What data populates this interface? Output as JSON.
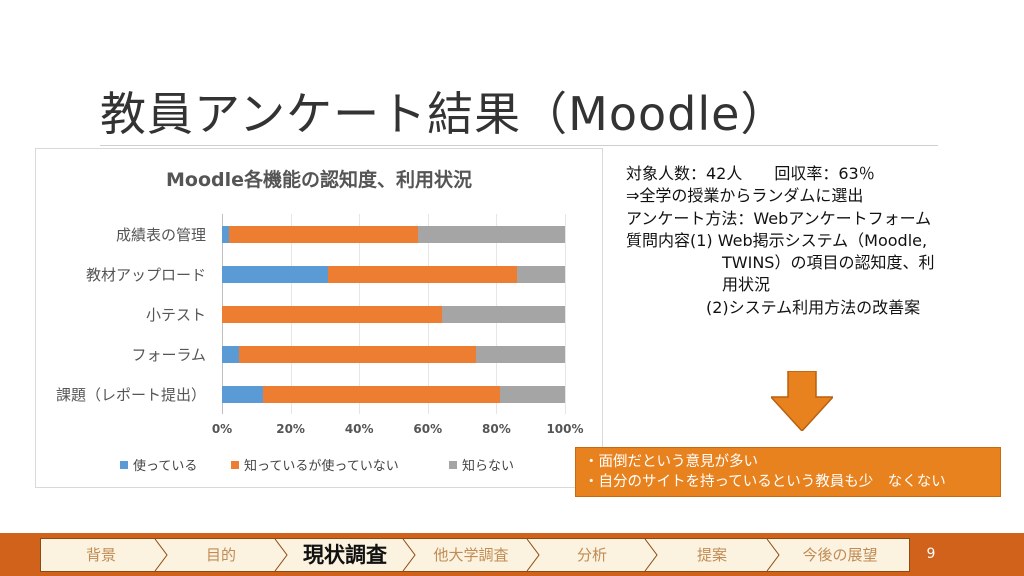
{
  "slide": {
    "title": "教員アンケート結果（Moodle）",
    "page_number": "9"
  },
  "chart_data": {
    "type": "bar",
    "orientation": "horizontal",
    "stacking": "percent",
    "title": "Moodle各機能の認知度、利用状況",
    "categories": [
      "成績表の管理",
      "教材アップロード",
      "小テスト",
      "フォーラム",
      "課題（レポート提出）"
    ],
    "series": [
      {
        "name": "使っている",
        "color": "#5b9bd5",
        "values": [
          2,
          31,
          0,
          5,
          12
        ]
      },
      {
        "name": "知っているが使っていない",
        "color": "#ed7d31",
        "values": [
          55,
          55,
          64,
          69,
          69
        ]
      },
      {
        "name": "知らない",
        "color": "#a5a5a5",
        "values": [
          43,
          14,
          36,
          26,
          19
        ]
      }
    ],
    "xlim": [
      0,
      100
    ],
    "x_ticks": [
      "0%",
      "20%",
      "40%",
      "60%",
      "80%",
      "100%"
    ],
    "grid": true,
    "legend_position": "bottom"
  },
  "info": {
    "lines": [
      "対象人数：42人　　回収率：63％",
      "⇒全学の授業からランダムに選出",
      "アンケート方法：Webアンケートフォーム",
      "質問内容(1) Web掲示システム（Moodle,",
      "　　　　　　TWINS）の項目の認知度、利",
      "　　　　　　用状況",
      "　　　　　(2)システム利用方法の改善案"
    ]
  },
  "callout": {
    "lines": [
      "・面倒だという意見が多い",
      "・自分のサイトを持っているという教員も少　なくない"
    ]
  },
  "nav": {
    "items": [
      "背景",
      "目的",
      "現状調査",
      "他大学調査",
      "分析",
      "提案",
      "今後の展望"
    ],
    "active_index": 2
  },
  "colors": {
    "accent_orange": "#e8821e",
    "footer_band": "#d0621c"
  },
  "icons": {
    "down_arrow": "down-arrow-icon"
  }
}
